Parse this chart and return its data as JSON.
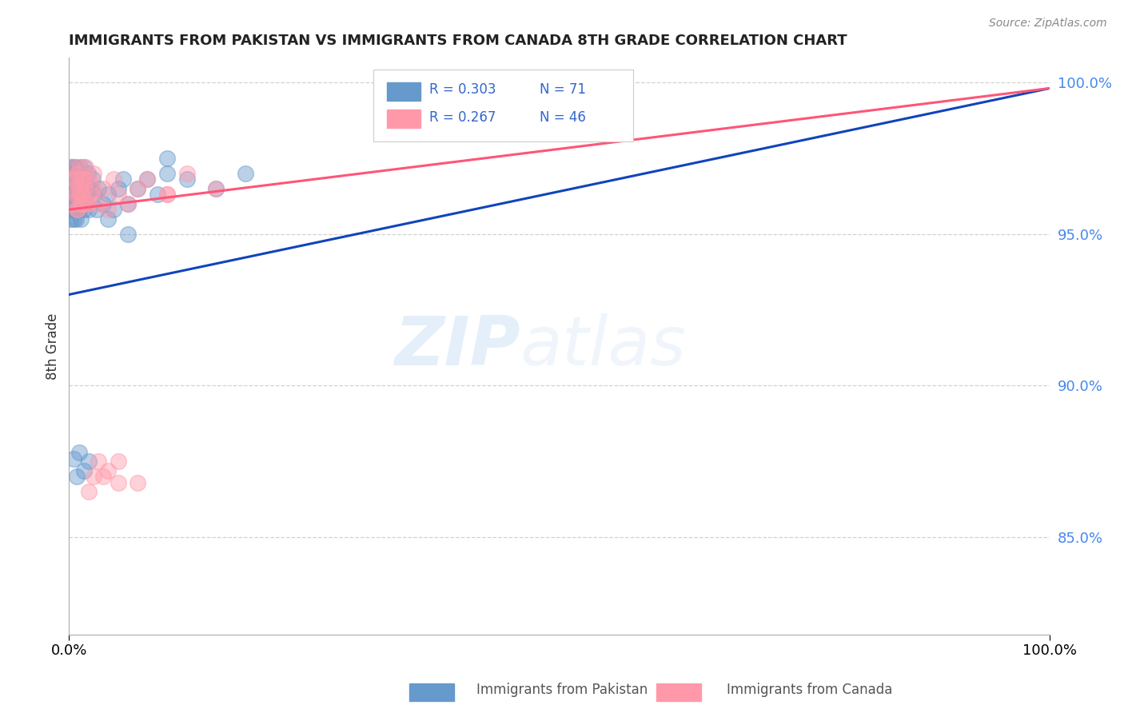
{
  "title": "IMMIGRANTS FROM PAKISTAN VS IMMIGRANTS FROM CANADA 8TH GRADE CORRELATION CHART",
  "source_text": "Source: ZipAtlas.com",
  "ylabel": "8th Grade",
  "x_min": 0.0,
  "x_max": 1.0,
  "y_min": 0.818,
  "y_max": 1.008,
  "y_ticks": [
    0.85,
    0.9,
    0.95,
    1.0
  ],
  "y_tick_labels": [
    "85.0%",
    "90.0%",
    "95.0%",
    "100.0%"
  ],
  "x_tick_labels": [
    "0.0%",
    "100.0%"
  ],
  "blue_color": "#6699CC",
  "pink_color": "#FF99AA",
  "blue_line_color": "#1144BB",
  "pink_line_color": "#FF5577",
  "background_color": "#FFFFFF",
  "watermark_zip": "ZIP",
  "watermark_atlas": "atlas",
  "pakistan_x": [
    0.001,
    0.001,
    0.002,
    0.002,
    0.002,
    0.003,
    0.003,
    0.003,
    0.003,
    0.004,
    0.004,
    0.004,
    0.004,
    0.005,
    0.005,
    0.005,
    0.005,
    0.006,
    0.006,
    0.006,
    0.006,
    0.007,
    0.007,
    0.007,
    0.008,
    0.008,
    0.008,
    0.009,
    0.009,
    0.01,
    0.01,
    0.01,
    0.011,
    0.011,
    0.012,
    0.012,
    0.013,
    0.014,
    0.015,
    0.015,
    0.016,
    0.017,
    0.018,
    0.019,
    0.02,
    0.022,
    0.024,
    0.026,
    0.028,
    0.03,
    0.035,
    0.04,
    0.045,
    0.05,
    0.055,
    0.06,
    0.07,
    0.08,
    0.09,
    0.1,
    0.12,
    0.15,
    0.18,
    0.06,
    0.1,
    0.04,
    0.02,
    0.015,
    0.01,
    0.008,
    0.005
  ],
  "pakistan_y": [
    0.96,
    0.955,
    0.963,
    0.968,
    0.972,
    0.958,
    0.965,
    0.97,
    0.96,
    0.963,
    0.968,
    0.972,
    0.958,
    0.965,
    0.97,
    0.96,
    0.955,
    0.963,
    0.968,
    0.958,
    0.972,
    0.96,
    0.965,
    0.955,
    0.968,
    0.963,
    0.958,
    0.97,
    0.96,
    0.965,
    0.963,
    0.958,
    0.968,
    0.972,
    0.96,
    0.955,
    0.963,
    0.968,
    0.958,
    0.972,
    0.96,
    0.965,
    0.963,
    0.97,
    0.958,
    0.965,
    0.968,
    0.963,
    0.958,
    0.965,
    0.96,
    0.963,
    0.958,
    0.965,
    0.968,
    0.96,
    0.965,
    0.968,
    0.963,
    0.97,
    0.968,
    0.965,
    0.97,
    0.95,
    0.975,
    0.955,
    0.875,
    0.872,
    0.878,
    0.87,
    0.876
  ],
  "canada_x": [
    0.002,
    0.003,
    0.004,
    0.005,
    0.006,
    0.007,
    0.008,
    0.009,
    0.01,
    0.011,
    0.012,
    0.013,
    0.014,
    0.015,
    0.016,
    0.017,
    0.018,
    0.02,
    0.022,
    0.025,
    0.03,
    0.035,
    0.04,
    0.045,
    0.05,
    0.06,
    0.07,
    0.08,
    0.1,
    0.12,
    0.15,
    0.008,
    0.01,
    0.012,
    0.015,
    0.02,
    0.025,
    0.03,
    0.04,
    0.05,
    0.02,
    0.025,
    0.035,
    0.05,
    0.07,
    0.1
  ],
  "canada_y": [
    0.968,
    0.972,
    0.965,
    0.96,
    0.968,
    0.963,
    0.97,
    0.958,
    0.965,
    0.972,
    0.968,
    0.963,
    0.96,
    0.968,
    0.965,
    0.972,
    0.96,
    0.968,
    0.963,
    0.97,
    0.96,
    0.965,
    0.958,
    0.968,
    0.963,
    0.96,
    0.965,
    0.968,
    0.963,
    0.97,
    0.965,
    0.958,
    0.963,
    0.96,
    0.968,
    0.865,
    0.87,
    0.875,
    0.872,
    0.868,
    0.96,
    0.965,
    0.87,
    0.875,
    0.868,
    0.963
  ],
  "blue_trend_x": [
    0.0,
    1.0
  ],
  "blue_trend_y": [
    0.93,
    0.998
  ],
  "pink_trend_x": [
    0.0,
    1.0
  ],
  "pink_trend_y": [
    0.958,
    0.998
  ]
}
